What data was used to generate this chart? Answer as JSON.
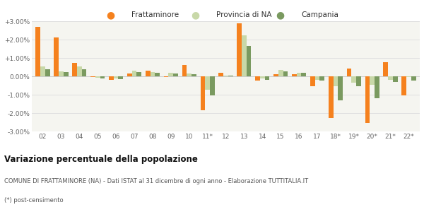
{
  "categories": [
    "02",
    "03",
    "04",
    "05",
    "06",
    "07",
    "08",
    "09",
    "10",
    "11*",
    "12",
    "13",
    "14",
    "15",
    "16",
    "17",
    "18*",
    "19*",
    "20*",
    "21*",
    "22*"
  ],
  "frattaminore": [
    2.7,
    2.1,
    0.72,
    -0.05,
    -0.18,
    0.15,
    0.3,
    -0.05,
    0.62,
    -1.85,
    0.18,
    2.9,
    -0.22,
    0.1,
    0.12,
    -0.55,
    -2.25,
    0.42,
    -2.55,
    0.78,
    -1.05
  ],
  "provincia_na": [
    0.55,
    0.28,
    0.55,
    -0.08,
    -0.12,
    0.3,
    0.22,
    0.18,
    0.15,
    -0.72,
    0.05,
    2.25,
    -0.1,
    0.35,
    0.2,
    -0.18,
    -0.55,
    -0.35,
    -0.45,
    -0.18,
    -0.05
  ],
  "campania": [
    0.38,
    0.22,
    0.38,
    -0.12,
    -0.15,
    0.22,
    0.18,
    0.15,
    0.12,
    -1.02,
    0.05,
    1.65,
    -0.18,
    0.28,
    0.18,
    -0.22,
    -1.3,
    -0.52,
    -1.18,
    -0.32,
    -0.22
  ],
  "color_frattaminore": "#f5811e",
  "color_provincia": "#c8d8a8",
  "color_campania": "#7a9a60",
  "bg_color": "#f5f5f0",
  "grid_color": "#e0e0e0",
  "ylim": [
    -3.0,
    3.0
  ],
  "yticks": [
    -3.0,
    -2.0,
    -1.0,
    0.0,
    1.0,
    2.0,
    3.0
  ],
  "title": "Variazione percentuale della popolazione",
  "subtitle": "COMUNE DI FRATTAMINORE (NA) - Dati ISTAT al 31 dicembre di ogni anno - Elaborazione TUTTITALIA.IT",
  "footnote": "(*) post-censimento",
  "legend_frattaminore": "Frattaminore",
  "legend_provincia": "Provincia di NA",
  "legend_campania": "Campania",
  "bar_width": 0.26
}
